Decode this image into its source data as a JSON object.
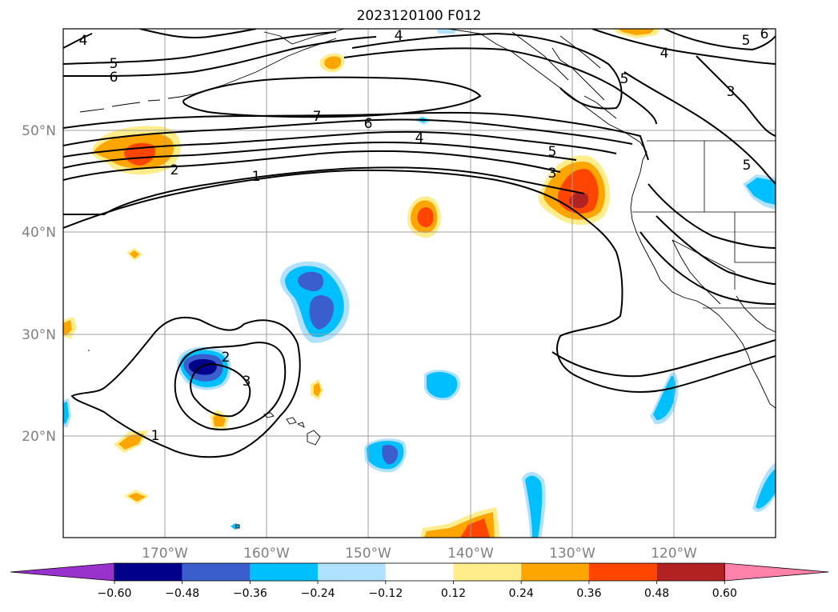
{
  "title": "2023120100 F012",
  "map": {
    "lon_labels": [
      "170°W",
      "160°W",
      "150°W",
      "140°W",
      "130°W",
      "120°W"
    ],
    "lat_labels": [
      "50°N",
      "40°N",
      "30°N",
      "20°N"
    ],
    "contour_labels": [
      "4",
      "5",
      "6",
      "7",
      "6",
      "4",
      "5",
      "3",
      "2",
      "1",
      "2",
      "3",
      "1",
      "4",
      "5",
      "4",
      "3",
      "5",
      "6",
      "5"
    ],
    "gridlines": true
  },
  "colorbar": {
    "ticks": [
      "−0.60",
      "−0.48",
      "−0.36",
      "−0.24",
      "−0.12",
      "0.12",
      "0.24",
      "0.36",
      "0.48",
      "0.60"
    ],
    "colors": [
      "#9932cc",
      "#00008b",
      "#3a5fcd",
      "#00bfff",
      "#b0e2ff",
      "#ffffff",
      "#ffec8b",
      "#ffa500",
      "#ff4500",
      "#b22222",
      "#ff82ab"
    ]
  }
}
